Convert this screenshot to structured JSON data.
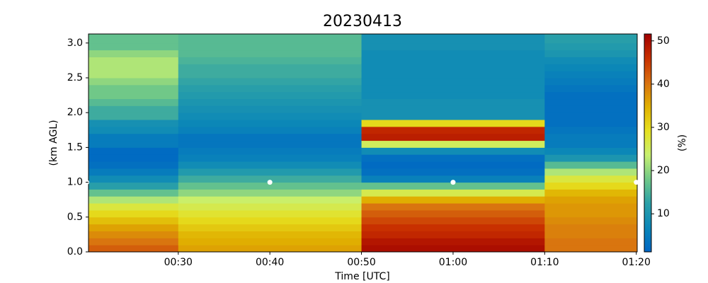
{
  "chart_data": {
    "type": "heatmap",
    "title": "20230413",
    "xlabel": "Time [UTC]",
    "ylabel": "(km AGL)",
    "colorbar_label": "(%)",
    "x": [
      20,
      40,
      60,
      80
    ],
    "y_edges": [
      0,
      0.1,
      0.2,
      0.3,
      0.4,
      0.5,
      0.6,
      0.7,
      0.8,
      0.9,
      1.0,
      1.1,
      1.2,
      1.3,
      1.4,
      1.5,
      1.6,
      1.7,
      1.8,
      1.9,
      2.0,
      2.1,
      2.2,
      2.3,
      2.4,
      2.5,
      2.6,
      2.7,
      2.8,
      2.9,
      3.0,
      3.1,
      3.2
    ],
    "z": [
      [
        42,
        40,
        38,
        36,
        33,
        30,
        27,
        22,
        17,
        12,
        8,
        5,
        3,
        2,
        2,
        5,
        5,
        8,
        9,
        14,
        14,
        16,
        18,
        18,
        20,
        22,
        22,
        22,
        20,
        17,
        17,
        17
      ],
      [
        36,
        35,
        34,
        32,
        30,
        28,
        26,
        24,
        20,
        17,
        14,
        11,
        8,
        6,
        5,
        4,
        4,
        6,
        7,
        8,
        9,
        10,
        11,
        12,
        13,
        14,
        14,
        15,
        16,
        16,
        16,
        16
      ],
      [
        50,
        49,
        47,
        46,
        44,
        42,
        40,
        35,
        26,
        17,
        6,
        3,
        2,
        3,
        8,
        25,
        48,
        47,
        30,
        9,
        9,
        9,
        8,
        8,
        8,
        8,
        8,
        8,
        8,
        9,
        9,
        9
      ],
      [
        40,
        40,
        39,
        39,
        38,
        37,
        37,
        36,
        34,
        30,
        27,
        22,
        16,
        10,
        7,
        5,
        5,
        4,
        3,
        3,
        3,
        3,
        3,
        4,
        5,
        6,
        7,
        8,
        10,
        11,
        12,
        12
      ]
    ],
    "points": {
      "color": "#ffffff",
      "x": [
        20,
        40,
        60,
        80
      ],
      "y": [
        1.0,
        1.0,
        1.0,
        1.0
      ]
    },
    "xlim": [
      20.2,
      80.1
    ],
    "xticks": [
      {
        "value": 30,
        "label": "00:30"
      },
      {
        "value": 40,
        "label": "00:40"
      },
      {
        "value": 50,
        "label": "00:50"
      },
      {
        "value": 60,
        "label": "01:00"
      },
      {
        "value": 70,
        "label": "01:10"
      },
      {
        "value": 80,
        "label": "01:20"
      }
    ],
    "ylim": [
      0,
      3.13
    ],
    "yticks": [
      {
        "value": 0,
        "label": "0.0"
      },
      0.5,
      {
        "value": 1,
        "label": "1.0"
      },
      1.5,
      {
        "value": 2,
        "label": "2.0"
      },
      2.5,
      {
        "value": 3,
        "label": "3.0"
      }
    ],
    "clim": [
      1.2,
      51.6
    ],
    "cticks": [
      10,
      20,
      30,
      40,
      50
    ],
    "colormap": [
      "#0066c4",
      "#0a86b8",
      "#2aa0a8",
      "#70c888",
      "#c8f070",
      "#e6e020",
      "#e0b000",
      "#d87010",
      "#c83000",
      "#a00000"
    ]
  }
}
